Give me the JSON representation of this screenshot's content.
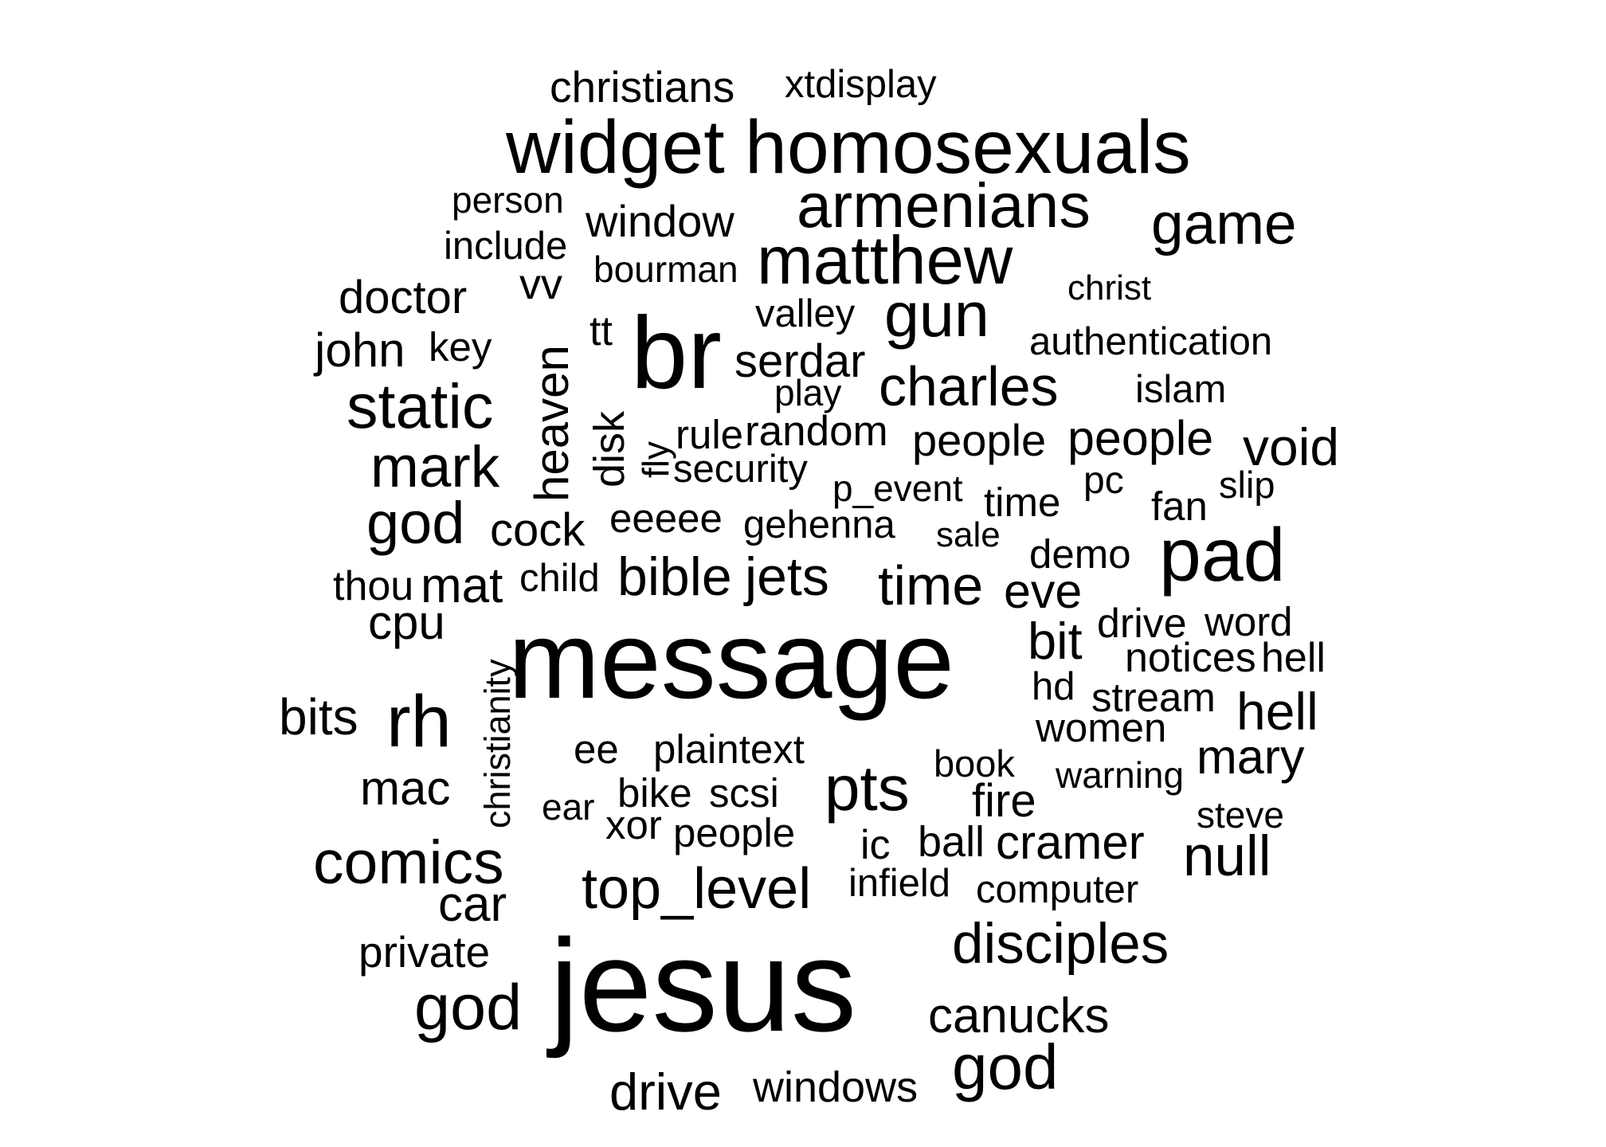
{
  "words": [
    {
      "text": "christians"
    },
    {
      "text": "xtdisplay"
    },
    {
      "text": "widget"
    },
    {
      "text": "homosexuals"
    },
    {
      "text": "armenians"
    },
    {
      "text": "game"
    },
    {
      "text": "person"
    },
    {
      "text": "window"
    },
    {
      "text": "include"
    },
    {
      "text": "matthew"
    },
    {
      "text": "bourman"
    },
    {
      "text": "vv"
    },
    {
      "text": "christ"
    },
    {
      "text": "doctor"
    },
    {
      "text": "gun"
    },
    {
      "text": "valley"
    },
    {
      "text": "tt"
    },
    {
      "text": "authentication"
    },
    {
      "text": "john"
    },
    {
      "text": "key"
    },
    {
      "text": "br"
    },
    {
      "text": "serdar"
    },
    {
      "text": "heaven"
    },
    {
      "text": "charles"
    },
    {
      "text": "islam"
    },
    {
      "text": "static"
    },
    {
      "text": "play"
    },
    {
      "text": "disk"
    },
    {
      "text": "random"
    },
    {
      "text": "rule"
    },
    {
      "text": "people"
    },
    {
      "text": "people"
    },
    {
      "text": "void"
    },
    {
      "text": "mark"
    },
    {
      "text": "fly"
    },
    {
      "text": "security"
    },
    {
      "text": "p_event"
    },
    {
      "text": "pc"
    },
    {
      "text": "slip"
    },
    {
      "text": "time"
    },
    {
      "text": "fan"
    },
    {
      "text": "god"
    },
    {
      "text": "eeeee"
    },
    {
      "text": "cock"
    },
    {
      "text": "gehenna"
    },
    {
      "text": "sale"
    },
    {
      "text": "pad"
    },
    {
      "text": "demo"
    },
    {
      "text": "thou"
    },
    {
      "text": "mat"
    },
    {
      "text": "child"
    },
    {
      "text": "bible"
    },
    {
      "text": "jets"
    },
    {
      "text": "time"
    },
    {
      "text": "eve"
    },
    {
      "text": "cpu"
    },
    {
      "text": "drive"
    },
    {
      "text": "word"
    },
    {
      "text": "bit"
    },
    {
      "text": "message"
    },
    {
      "text": "notices"
    },
    {
      "text": "hell"
    },
    {
      "text": "christianity"
    },
    {
      "text": "hd"
    },
    {
      "text": "stream"
    },
    {
      "text": "bits"
    },
    {
      "text": "rh"
    },
    {
      "text": "hell"
    },
    {
      "text": "women"
    },
    {
      "text": "ee"
    },
    {
      "text": "plaintext"
    },
    {
      "text": "book"
    },
    {
      "text": "mary"
    },
    {
      "text": "warning"
    },
    {
      "text": "mac"
    },
    {
      "text": "pts"
    },
    {
      "text": "bike"
    },
    {
      "text": "scsi"
    },
    {
      "text": "fire"
    },
    {
      "text": "ear"
    },
    {
      "text": "steve"
    },
    {
      "text": "xor"
    },
    {
      "text": "people"
    },
    {
      "text": "ic"
    },
    {
      "text": "ball"
    },
    {
      "text": "cramer"
    },
    {
      "text": "comics"
    },
    {
      "text": "null"
    },
    {
      "text": "infield"
    },
    {
      "text": "top_level"
    },
    {
      "text": "computer"
    },
    {
      "text": "car"
    },
    {
      "text": "disciples"
    },
    {
      "text": "private"
    },
    {
      "text": "jesus"
    },
    {
      "text": "god"
    },
    {
      "text": "canucks"
    },
    {
      "text": "god"
    },
    {
      "text": "windows"
    },
    {
      "text": "drive"
    }
  ]
}
